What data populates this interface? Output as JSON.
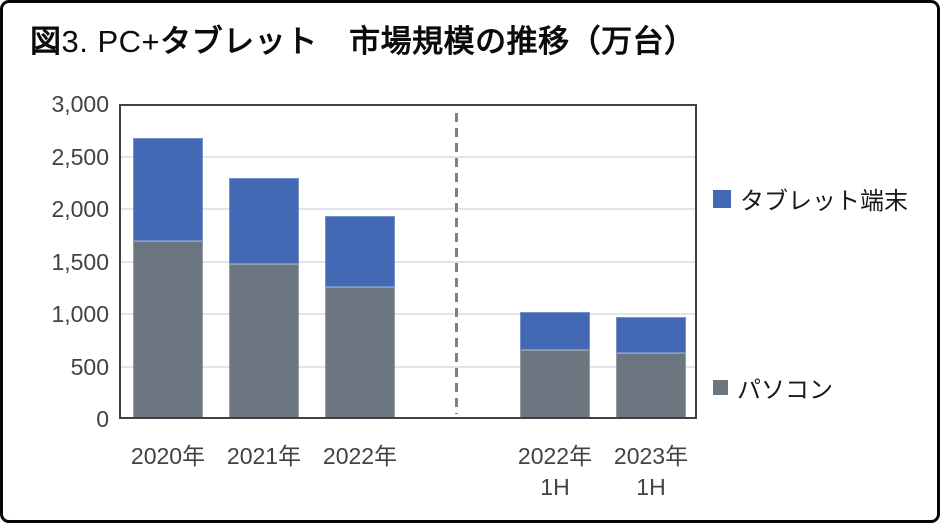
{
  "figure": {
    "title": {
      "part1": "図",
      "part2": "3. PC+",
      "part3": "タブレット　市場規模の推移（万台）"
    }
  },
  "chart_data": {
    "type": "bar",
    "stacked": true,
    "title": "図3. PC+タブレット　市場規模の推移（万台）",
    "unit": "万台",
    "categories": [
      "2020年",
      "2021年",
      "2022年",
      "2022年 1H",
      "2023年 1H"
    ],
    "category_label_lines": [
      [
        "2020年"
      ],
      [
        "2021年"
      ],
      [
        "2022年"
      ],
      [
        "2022年",
        "1H"
      ],
      [
        "2023年",
        "1H"
      ]
    ],
    "series": [
      {
        "name": "パソコン",
        "color": "#6C7680",
        "values": [
          1700,
          1480,
          1255,
          655,
          630
        ]
      },
      {
        "name": "タブレット端末",
        "color": "#4369B5",
        "values": [
          975,
          815,
          675,
          360,
          345
        ]
      }
    ],
    "totals": [
      2675,
      2295,
      1930,
      1015,
      975
    ],
    "ylim": [
      0,
      3000
    ],
    "ytick_interval": 500,
    "ytick_labels": [
      "0",
      "500",
      "1,000",
      "1,500",
      "2,000",
      "2,500",
      "3,000"
    ],
    "grid": true,
    "divider_after_category_index": 2,
    "legend_position": "right",
    "legend_order": [
      "タブレット端末",
      "パソコン"
    ]
  },
  "colors": {
    "tablet_blue": "#4369B5",
    "pc_gray": "#6C7680",
    "gridline": "#DFE5EB",
    "axis_border": "#3E4145",
    "divider_gray": "#7F7F7F",
    "frame_border": "#050505"
  }
}
